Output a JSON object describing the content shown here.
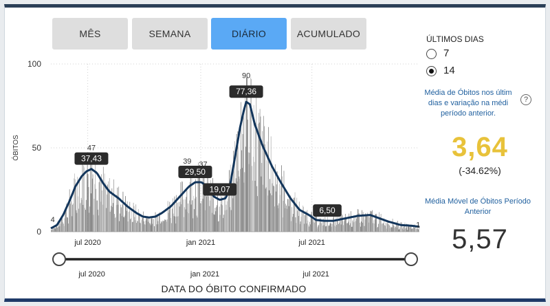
{
  "tabs": [
    {
      "label": "MÊS",
      "active": false
    },
    {
      "label": "SEMANA",
      "active": false
    },
    {
      "label": "DIÁRIO",
      "active": true
    },
    {
      "label": "ACUMULADO",
      "active": false
    }
  ],
  "period": {
    "title": "ÚLTIMOS DIAS",
    "options": [
      {
        "label": "7",
        "selected": false
      },
      {
        "label": "14",
        "selected": true
      }
    ]
  },
  "summary": {
    "desc_current": [
      "Média de Óbitos nos últim",
      "dias e variação na médi",
      "período anterior."
    ],
    "help_icon": "?",
    "current_value": "3,64",
    "variation": "(-34.62%)",
    "desc_previous": [
      "Média Móvel de Óbitos Período",
      "Anterior"
    ],
    "previous_value": "5,57"
  },
  "colors": {
    "accent_tab": "#5aa9f5",
    "moving_avg_line": "#12355b",
    "bars": "#8c8c8c",
    "yellow_value": "#e8c23a",
    "description_blue": "#1f5f9e"
  },
  "slider": {
    "start_label": "jul 2020",
    "tick_labels": [
      "jul 2020",
      "jan 2021",
      "jul 2021"
    ]
  },
  "chart_data": {
    "type": "bar",
    "ylabel": "ÓBITOS",
    "xlabel": "DATA DO ÓBITO CONFIRMADO",
    "ylim": [
      0,
      100
    ],
    "yticks": [
      0,
      50,
      100
    ],
    "xticks": [
      {
        "label": "jul 2020",
        "day": 60
      },
      {
        "label": "jan 2021",
        "day": 244
      },
      {
        "label": "jul 2021",
        "day": 425
      }
    ],
    "x_range_days": [
      0,
      600
    ],
    "grid": true,
    "moving_average_keypoints": [
      [
        0,
        2
      ],
      [
        10,
        4
      ],
      [
        20,
        10
      ],
      [
        30,
        18
      ],
      [
        40,
        27
      ],
      [
        50,
        33
      ],
      [
        58,
        36
      ],
      [
        66,
        37.4
      ],
      [
        75,
        35
      ],
      [
        85,
        29
      ],
      [
        95,
        24
      ],
      [
        110,
        20
      ],
      [
        125,
        15
      ],
      [
        140,
        11
      ],
      [
        150,
        9
      ],
      [
        160,
        8.5
      ],
      [
        170,
        9
      ],
      [
        180,
        11
      ],
      [
        195,
        15
      ],
      [
        210,
        21
      ],
      [
        225,
        27
      ],
      [
        235,
        29.5
      ],
      [
        245,
        29.5
      ],
      [
        255,
        27
      ],
      [
        265,
        21
      ],
      [
        275,
        19
      ],
      [
        285,
        20
      ],
      [
        292,
        28
      ],
      [
        300,
        45
      ],
      [
        308,
        62
      ],
      [
        314,
        72
      ],
      [
        318,
        77.36
      ],
      [
        324,
        76
      ],
      [
        332,
        64
      ],
      [
        345,
        51
      ],
      [
        360,
        39
      ],
      [
        375,
        29
      ],
      [
        390,
        20
      ],
      [
        405,
        13
      ],
      [
        420,
        10
      ],
      [
        432,
        7
      ],
      [
        445,
        6.5
      ],
      [
        460,
        6.5
      ],
      [
        480,
        8
      ],
      [
        500,
        9.5
      ],
      [
        520,
        10
      ],
      [
        535,
        8
      ],
      [
        550,
        6
      ],
      [
        570,
        4
      ],
      [
        585,
        3.64
      ],
      [
        600,
        3
      ]
    ],
    "annotations": [
      {
        "text": "4",
        "day": 3,
        "value": 4,
        "style": "plain"
      },
      {
        "text": "47",
        "day": 66,
        "value": 47,
        "style": "plain"
      },
      {
        "text": "37,43",
        "day": 66,
        "value": 37.43,
        "style": "box"
      },
      {
        "text": "39",
        "day": 222,
        "value": 39,
        "style": "plain"
      },
      {
        "text": "37",
        "day": 248,
        "value": 37,
        "style": "plain"
      },
      {
        "text": "29,50",
        "day": 235,
        "value": 29.5,
        "style": "box"
      },
      {
        "text": "19,07",
        "day": 275,
        "value": 19.07,
        "style": "box"
      },
      {
        "text": "90",
        "day": 318,
        "value": 90,
        "style": "plain"
      },
      {
        "text": "77,36",
        "day": 318,
        "value": 77.36,
        "style": "box"
      },
      {
        "text": "6,50",
        "day": 450,
        "value": 6.5,
        "style": "box"
      },
      {
        "text": "1",
        "day": 598,
        "value": 1,
        "style": "plain"
      }
    ]
  }
}
